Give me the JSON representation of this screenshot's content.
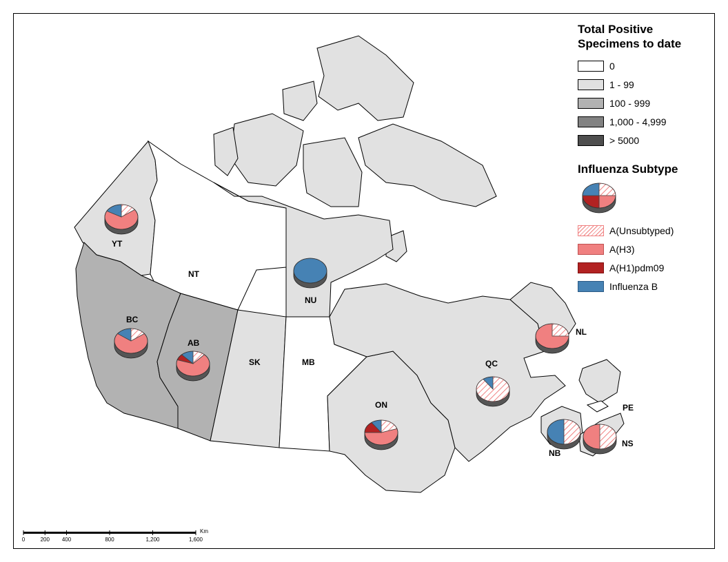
{
  "legend": {
    "positive_title": "Total Positive Specimens to date",
    "ranges": [
      {
        "label": "0",
        "color": "#ffffff"
      },
      {
        "label": "1 - 99",
        "color": "#e1e1e1"
      },
      {
        "label": "100 - 999",
        "color": "#b2b2b2"
      },
      {
        "label": "1,000 - 4,999",
        "color": "#828282"
      },
      {
        "label": "> 5000",
        "color": "#4e4e4e"
      }
    ],
    "subtype_title": "Influenza Subtype",
    "subtypes": [
      {
        "label": "A(Unsubtyped)",
        "color": "#f08080",
        "pattern": "hatch"
      },
      {
        "label": "A(H3)",
        "color": "#f08080",
        "pattern": "solid"
      },
      {
        "label": "A(H1)pdm09",
        "color": "#b22222",
        "pattern": "solid"
      },
      {
        "label": "Influenza B",
        "color": "#4682b4",
        "pattern": "solid"
      }
    ],
    "sample_pie": [
      25,
      25,
      25,
      25
    ]
  },
  "regions": [
    {
      "code": "YT",
      "category": "1 - 99",
      "pie": [
        15,
        68,
        0,
        17
      ]
    },
    {
      "code": "NT",
      "category": "0",
      "pie": null
    },
    {
      "code": "NU",
      "category": "1 - 99",
      "pie": [
        0,
        0,
        0,
        100
      ]
    },
    {
      "code": "BC",
      "category": "100 - 999",
      "pie": [
        15,
        70,
        0,
        15
      ]
    },
    {
      "code": "AB",
      "category": "100 - 999",
      "pie": [
        12,
        68,
        8,
        12
      ]
    },
    {
      "code": "SK",
      "category": "1 - 99",
      "pie": null
    },
    {
      "code": "MB",
      "category": "0",
      "pie": null
    },
    {
      "code": "ON",
      "category": "1 - 99",
      "pie": [
        20,
        55,
        15,
        10
      ]
    },
    {
      "code": "QC",
      "category": "1 - 99",
      "pie": [
        90,
        0,
        0,
        10
      ]
    },
    {
      "code": "NL",
      "category": "1 - 99",
      "pie": [
        25,
        75,
        0,
        0
      ]
    },
    {
      "code": "NB",
      "category": "1 - 99",
      "pie": [
        50,
        0,
        0,
        50
      ]
    },
    {
      "code": "NS",
      "category": "1 - 99",
      "pie": [
        50,
        50,
        0,
        0
      ]
    },
    {
      "code": "PE",
      "category": "0",
      "pie": null
    }
  ],
  "scale": {
    "ticks": [
      "0",
      "200",
      "400",
      "800",
      "1,200",
      "1,600"
    ],
    "tick_km": [
      0,
      200,
      400,
      800,
      1200,
      1600
    ],
    "unit": "Km"
  }
}
